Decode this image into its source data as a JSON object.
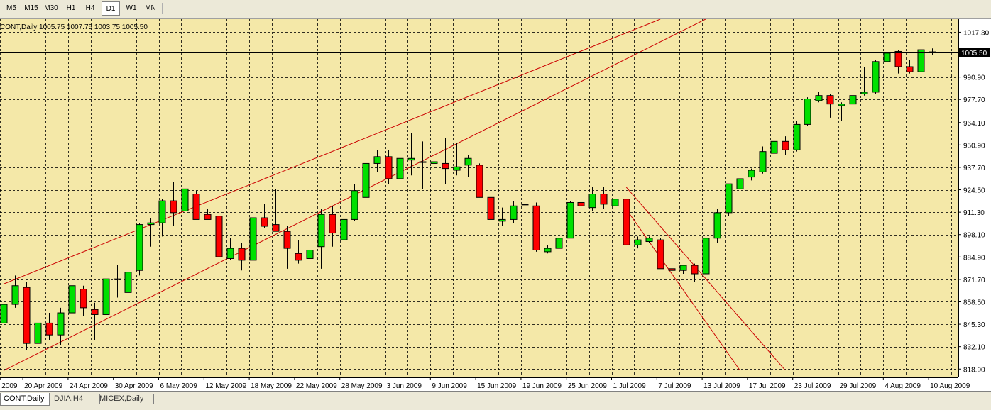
{
  "toolbar": {
    "timeframes": [
      "M5",
      "M15",
      "M30",
      "H1",
      "H4",
      "D1",
      "W1",
      "MN"
    ],
    "active": "D1"
  },
  "chart_info": {
    "symbol": "CONT,Daily",
    "open": "1005.75",
    "high": "1007.75",
    "low": "1003.75",
    "close": "1005.50"
  },
  "tabs": [
    {
      "label": "CONT,Daily",
      "active": true
    },
    {
      "label": "DJIA,H4",
      "active": false
    },
    {
      "label": "MICEX,Daily",
      "active": false
    }
  ],
  "colors": {
    "background": "#f4e8a8",
    "grid": "#000000",
    "bull": "#00e000",
    "bear": "#ff0000",
    "trendline": "#cc0000"
  },
  "chart_data": {
    "type": "candlestick",
    "ylim": [
      814.0,
      1025.0
    ],
    "y_ticks": [
      1017.3,
      1004.2,
      990.9,
      977.7,
      964.1,
      950.9,
      937.7,
      924.5,
      911.3,
      898.1,
      884.9,
      871.7,
      858.5,
      845.3,
      832.1,
      818.9
    ],
    "y_tick_labels": [
      "1017.30",
      "1004.20",
      "990.90",
      "977.70",
      "964.10",
      "950.90",
      "937.70",
      "924.50",
      "911.30",
      "898.10",
      "884.90",
      "871.70",
      "858.50",
      "845.30",
      "832.10",
      "818.90"
    ],
    "current_price": 1005.5,
    "current_price_label": "1005.50",
    "x_labels": [
      {
        "index": 0,
        "label": "2009"
      },
      {
        "index": 2,
        "label": "20 Apr 2009"
      },
      {
        "index": 6,
        "label": "24 Apr 2009"
      },
      {
        "index": 10,
        "label": "30 Apr 2009"
      },
      {
        "index": 14,
        "label": "6 May 2009"
      },
      {
        "index": 18,
        "label": "12 May 2009"
      },
      {
        "index": 22,
        "label": "18 May 2009"
      },
      {
        "index": 26,
        "label": "22 May 2009"
      },
      {
        "index": 30,
        "label": "28 May 2009"
      },
      {
        "index": 34,
        "label": "3 Jun 2009"
      },
      {
        "index": 38,
        "label": "9 Jun 2009"
      },
      {
        "index": 42,
        "label": "15 Jun 2009"
      },
      {
        "index": 46,
        "label": "19 Jun 2009"
      },
      {
        "index": 50,
        "label": "25 Jun 2009"
      },
      {
        "index": 54,
        "label": "1 Jul 2009"
      },
      {
        "index": 58,
        "label": "7 Jul 2009"
      },
      {
        "index": 62,
        "label": "13 Jul 2009"
      },
      {
        "index": 66,
        "label": "17 Jul 2009"
      },
      {
        "index": 70,
        "label": "23 Jul 2009"
      },
      {
        "index": 74,
        "label": "29 Jul 2009"
      },
      {
        "index": 78,
        "label": "4 Aug 2009"
      },
      {
        "index": 82,
        "label": "10 Aug 2009"
      }
    ],
    "candles": [
      {
        "o": 846,
        "h": 859,
        "l": 840,
        "c": 857
      },
      {
        "o": 857,
        "h": 874,
        "l": 855,
        "c": 868
      },
      {
        "o": 867,
        "h": 870,
        "l": 830,
        "c": 834
      },
      {
        "o": 834,
        "h": 850,
        "l": 825,
        "c": 846
      },
      {
        "o": 846,
        "h": 852,
        "l": 836,
        "c": 839
      },
      {
        "o": 839,
        "h": 855,
        "l": 833,
        "c": 852
      },
      {
        "o": 852,
        "h": 869,
        "l": 849,
        "c": 868
      },
      {
        "o": 866,
        "h": 868,
        "l": 850,
        "c": 855
      },
      {
        "o": 854,
        "h": 858,
        "l": 836,
        "c": 851
      },
      {
        "o": 851,
        "h": 873,
        "l": 849,
        "c": 872
      },
      {
        "o": 872,
        "h": 880,
        "l": 861,
        "c": 872
      },
      {
        "o": 864,
        "h": 884,
        "l": 862,
        "c": 876
      },
      {
        "o": 877,
        "h": 905,
        "l": 874,
        "c": 904
      },
      {
        "o": 904,
        "h": 908,
        "l": 891,
        "c": 905
      },
      {
        "o": 905,
        "h": 919,
        "l": 897,
        "c": 918
      },
      {
        "o": 918,
        "h": 929,
        "l": 903,
        "c": 911
      },
      {
        "o": 912,
        "h": 931,
        "l": 910,
        "c": 925
      },
      {
        "o": 922,
        "h": 924,
        "l": 907,
        "c": 907
      },
      {
        "o": 910,
        "h": 913,
        "l": 907,
        "c": 907
      },
      {
        "o": 909,
        "h": 912,
        "l": 884,
        "c": 885
      },
      {
        "o": 884,
        "h": 896,
        "l": 883,
        "c": 890
      },
      {
        "o": 890,
        "h": 893,
        "l": 877,
        "c": 883
      },
      {
        "o": 883,
        "h": 912,
        "l": 876,
        "c": 908
      },
      {
        "o": 908,
        "h": 916,
        "l": 902,
        "c": 903
      },
      {
        "o": 904,
        "h": 925,
        "l": 900,
        "c": 900
      },
      {
        "o": 900,
        "h": 903,
        "l": 878,
        "c": 890
      },
      {
        "o": 887,
        "h": 895,
        "l": 881,
        "c": 883
      },
      {
        "o": 884,
        "h": 895,
        "l": 876,
        "c": 889
      },
      {
        "o": 891,
        "h": 913,
        "l": 878,
        "c": 910
      },
      {
        "o": 910,
        "h": 915,
        "l": 891,
        "c": 899
      },
      {
        "o": 895,
        "h": 908,
        "l": 890,
        "c": 907
      },
      {
        "o": 907,
        "h": 928,
        "l": 906,
        "c": 924
      },
      {
        "o": 920,
        "h": 950,
        "l": 917,
        "c": 940
      },
      {
        "o": 940,
        "h": 948,
        "l": 935,
        "c": 944
      },
      {
        "o": 944,
        "h": 948,
        "l": 928,
        "c": 931
      },
      {
        "o": 931,
        "h": 943,
        "l": 929,
        "c": 943
      },
      {
        "o": 942,
        "h": 958,
        "l": 933,
        "c": 943
      },
      {
        "o": 941,
        "h": 953,
        "l": 925,
        "c": 941
      },
      {
        "o": 940,
        "h": 950,
        "l": 931,
        "c": 941
      },
      {
        "o": 940,
        "h": 955,
        "l": 928,
        "c": 937
      },
      {
        "o": 936,
        "h": 952,
        "l": 933,
        "c": 938
      },
      {
        "o": 939,
        "h": 945,
        "l": 932,
        "c": 943
      },
      {
        "o": 939,
        "h": 940,
        "l": 920,
        "c": 920
      },
      {
        "o": 920,
        "h": 923,
        "l": 906,
        "c": 907
      },
      {
        "o": 906,
        "h": 914,
        "l": 903,
        "c": 907
      },
      {
        "o": 907,
        "h": 918,
        "l": 905,
        "c": 915
      },
      {
        "o": 916,
        "h": 918,
        "l": 910,
        "c": 916
      },
      {
        "o": 915,
        "h": 917,
        "l": 888,
        "c": 889
      },
      {
        "o": 888,
        "h": 892,
        "l": 887,
        "c": 890
      },
      {
        "o": 890,
        "h": 903,
        "l": 888,
        "c": 896
      },
      {
        "o": 896,
        "h": 918,
        "l": 896,
        "c": 917
      },
      {
        "o": 917,
        "h": 921,
        "l": 913,
        "c": 915
      },
      {
        "o": 914,
        "h": 926,
        "l": 912,
        "c": 922
      },
      {
        "o": 922,
        "h": 926,
        "l": 913,
        "c": 916
      },
      {
        "o": 915,
        "h": 922,
        "l": 906,
        "c": 919
      },
      {
        "o": 919,
        "h": 919,
        "l": 892,
        "c": 892
      },
      {
        "o": 892,
        "h": 897,
        "l": 890,
        "c": 895
      },
      {
        "o": 894,
        "h": 897,
        "l": 893,
        "c": 896
      },
      {
        "o": 895,
        "h": 896,
        "l": 878,
        "c": 878
      },
      {
        "o": 878,
        "h": 885,
        "l": 868,
        "c": 877
      },
      {
        "o": 877,
        "h": 880,
        "l": 875,
        "c": 880
      },
      {
        "o": 880,
        "h": 881,
        "l": 870,
        "c": 875
      },
      {
        "o": 875,
        "h": 897,
        "l": 874,
        "c": 896
      },
      {
        "o": 896,
        "h": 913,
        "l": 893,
        "c": 911
      },
      {
        "o": 911,
        "h": 928,
        "l": 909,
        "c": 928
      },
      {
        "o": 925,
        "h": 938,
        "l": 921,
        "c": 931
      },
      {
        "o": 932,
        "h": 937,
        "l": 930,
        "c": 936
      },
      {
        "o": 935,
        "h": 950,
        "l": 934,
        "c": 947
      },
      {
        "o": 946,
        "h": 955,
        "l": 944,
        "c": 953
      },
      {
        "o": 953,
        "h": 956,
        "l": 945,
        "c": 948
      },
      {
        "o": 948,
        "h": 965,
        "l": 947,
        "c": 963
      },
      {
        "o": 963,
        "h": 979,
        "l": 962,
        "c": 978
      },
      {
        "o": 977,
        "h": 982,
        "l": 976,
        "c": 980
      },
      {
        "o": 980,
        "h": 981,
        "l": 967,
        "c": 975
      },
      {
        "o": 974,
        "h": 976,
        "l": 965,
        "c": 975
      },
      {
        "o": 975,
        "h": 982,
        "l": 973,
        "c": 980
      },
      {
        "o": 981,
        "h": 997,
        "l": 980,
        "c": 982
      },
      {
        "o": 982,
        "h": 1001,
        "l": 981,
        "c": 1000
      },
      {
        "o": 1000,
        "h": 1007,
        "l": 995,
        "c": 1005
      },
      {
        "o": 1006,
        "h": 1007,
        "l": 993,
        "c": 997
      },
      {
        "o": 997,
        "h": 1001,
        "l": 993,
        "c": 994
      },
      {
        "o": 994,
        "h": 1014,
        "l": 992,
        "c": 1007
      },
      {
        "o": 1005.75,
        "h": 1007.75,
        "l": 1003.75,
        "c": 1005.5
      }
    ],
    "trendlines": [
      {
        "from": [
          0,
          869
        ],
        "to": [
          58,
          1025
        ]
      },
      {
        "from": [
          0,
          818
        ],
        "to": [
          62,
          1025
        ]
      },
      {
        "from": [
          55,
          926
        ],
        "to": [
          69,
          818.5
        ]
      },
      {
        "from": [
          55,
          913
        ],
        "to": [
          65,
          818.5
        ]
      }
    ]
  }
}
